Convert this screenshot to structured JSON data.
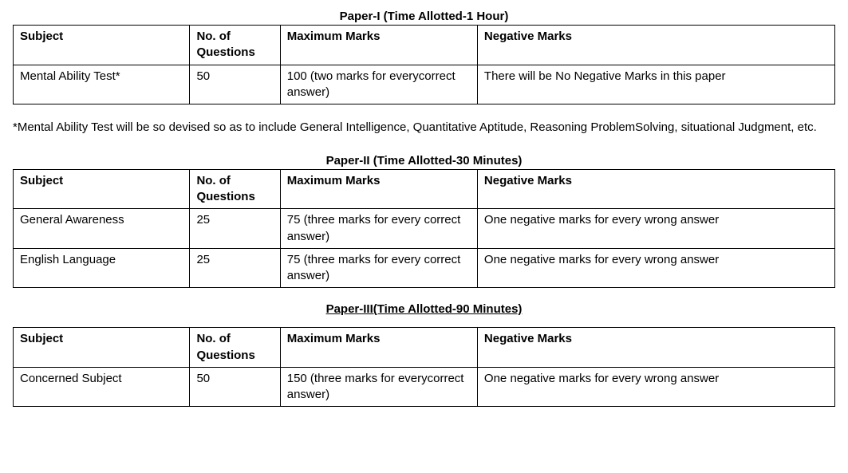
{
  "columns": {
    "subject": "Subject",
    "questions": "No. of Questions",
    "maxmarks": "Maximum Marks",
    "negmarks": "Negative Marks"
  },
  "paper1": {
    "title": "Paper-I (Time Allotted-1 Hour)",
    "rows": [
      {
        "subject": "Mental Ability Test*",
        "questions": "50",
        "maxmarks": "100 (two marks for everycorrect answer)",
        "negmarks": "There will be No Negative Marks in this paper"
      }
    ]
  },
  "footnote": "*Mental Ability Test will be so devised so as to include General Intelligence, Quantitative Aptitude, Reasoning ProblemSolving, situational Judgment, etc.",
  "paper2": {
    "title": "Paper-II (Time Allotted-30 Minutes)",
    "rows": [
      {
        "subject": "General Awareness",
        "questions": "25",
        "maxmarks": "75 (three marks for every correct answer)",
        "negmarks": "One negative marks for every wrong answer"
      },
      {
        "subject": "English Language",
        "questions": "25",
        "maxmarks": "75 (three marks for every correct answer)",
        "negmarks": "One negative marks for every wrong answer"
      }
    ]
  },
  "paper3": {
    "title": "Paper-III(Time Allotted-90 Minutes)",
    "rows": [
      {
        "subject": "Concerned Subject",
        "questions": "50",
        "maxmarks": "150 (three marks  for everycorrect answer)",
        "negmarks": "One negative marks for every wrong answer"
      }
    ]
  }
}
